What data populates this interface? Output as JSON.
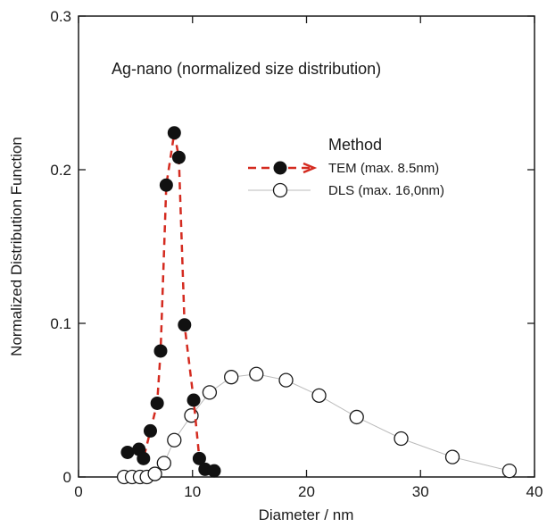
{
  "chart_data": {
    "type": "scatter",
    "annotation": "Ag-nano (normalized size distribution)",
    "xlabel": "Diameter / nm",
    "ylabel": "Normalized Distribution Function",
    "xlim": [
      0,
      40
    ],
    "ylim": [
      0,
      0.3
    ],
    "x_ticks": [
      "0",
      "10",
      "20",
      "30",
      "40"
    ],
    "y_ticks": [
      "0",
      "0.1",
      "0.2",
      "0.3"
    ],
    "grid": false,
    "legend": {
      "title": "Method",
      "placement": "upper-right",
      "entries": [
        "TEM (max. 8.5nm)",
        "DLS (max. 16,0nm)"
      ]
    },
    "series": [
      {
        "name": "TEM (max. 8.5nm)",
        "marker": "filled-circle",
        "line": "dashed",
        "color": "#d42b20",
        "x": [
          4.3,
          5.3,
          5.7,
          6.3,
          6.9,
          7.2,
          7.7,
          8.4,
          8.8,
          9.3,
          10.1,
          10.6,
          11.1,
          11.9
        ],
        "y": [
          0.016,
          0.018,
          0.012,
          0.03,
          0.048,
          0.082,
          0.19,
          0.224,
          0.208,
          0.099,
          0.05,
          0.012,
          0.005,
          0.004
        ]
      },
      {
        "name": "DLS (max. 16,0nm)",
        "marker": "open-circle",
        "line": "solid-thin",
        "color": "#bbbbbb",
        "x": [
          4.0,
          4.7,
          5.4,
          6.0,
          6.7,
          7.5,
          8.4,
          9.9,
          11.5,
          13.4,
          15.6,
          18.2,
          21.1,
          24.4,
          28.3,
          32.8,
          37.8
        ],
        "y": [
          0.0,
          0.0,
          0.0,
          0.0,
          0.002,
          0.009,
          0.024,
          0.04,
          0.055,
          0.065,
          0.067,
          0.063,
          0.053,
          0.039,
          0.025,
          0.013,
          0.004
        ]
      }
    ]
  },
  "colors": {
    "tem": "#d42b20",
    "dls_line": "#bbbbbb",
    "axis": "#1a1a1a"
  }
}
